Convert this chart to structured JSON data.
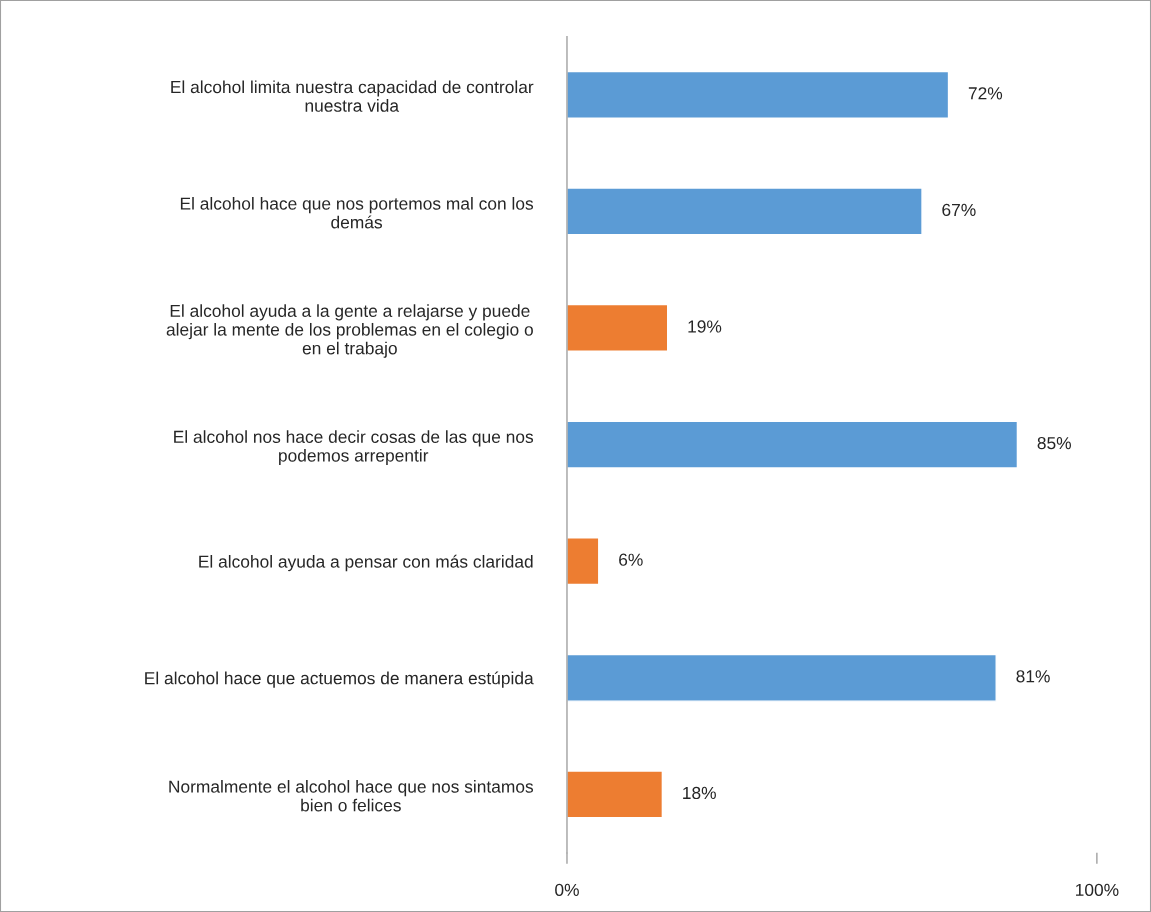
{
  "chart_data": {
    "type": "bar",
    "orientation": "horizontal",
    "categories": [
      "El alcohol limita nuestra capacidad de controlar nuestra vida",
      "El alcohol hace que nos portemos mal con los demás",
      "El alcohol ayuda a la gente a relajarse y puede alejar la mente de los problemas en el colegio o en el trabajo",
      "El alcohol nos hace decir cosas de las que nos podemos arrepentir",
      "El alcohol ayuda a pensar con más claridad",
      "El alcohol hace que actuemos de manera estúpida",
      "Normalmente el alcohol hace que nos sintamos bien o felices"
    ],
    "values": [
      72,
      67,
      19,
      85,
      6,
      81,
      18
    ],
    "colors": [
      "#5b9bd5",
      "#5b9bd5",
      "#ed7d31",
      "#5b9bd5",
      "#ed7d31",
      "#5b9bd5",
      "#ed7d31"
    ],
    "value_labels": [
      "72%",
      "67%",
      "19%",
      "85%",
      "6%",
      "81%",
      "18%"
    ],
    "xlim": [
      0,
      100
    ],
    "xticks": [
      {
        "value": 0,
        "label": "0%"
      },
      {
        "value": 100,
        "label": "100%"
      }
    ],
    "grid": false,
    "legend": false
  }
}
